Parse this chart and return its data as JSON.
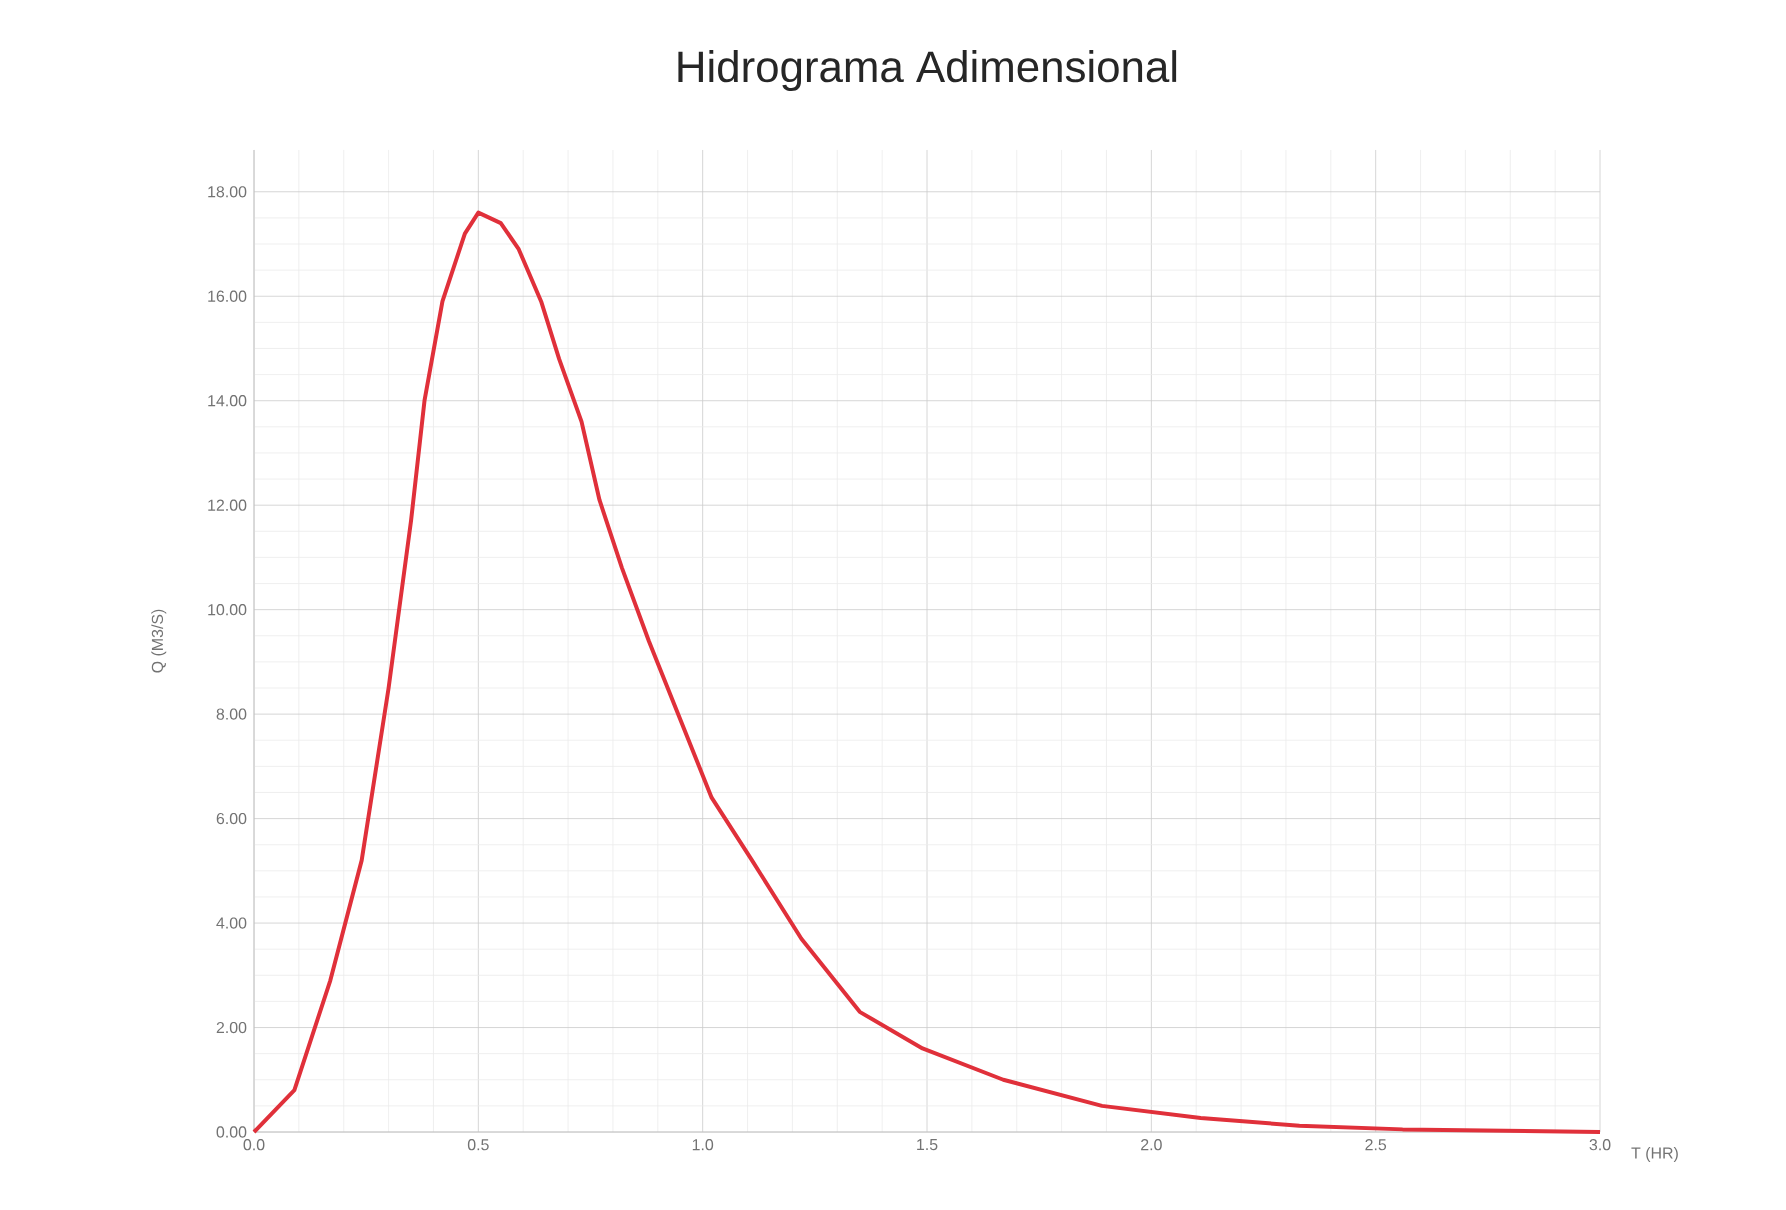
{
  "chart_data": {
    "type": "line",
    "title": "Hidrograma Adimensional",
    "xlabel": "T (HR)",
    "ylabel": "Q (M3/S)",
    "xlim": [
      0,
      3
    ],
    "ylim": [
      0,
      18.8
    ],
    "xticks": [
      {
        "value": 0,
        "label": "0.0"
      },
      {
        "value": 0.5,
        "label": "0.5"
      },
      {
        "value": 1,
        "label": "1.0"
      },
      {
        "value": 1.5,
        "label": "1.5"
      },
      {
        "value": 2,
        "label": "2.0"
      },
      {
        "value": 2.5,
        "label": "2.5"
      },
      {
        "value": 3,
        "label": "3.0"
      }
    ],
    "yticks": [
      {
        "value": 0,
        "label": "0.00"
      },
      {
        "value": 2,
        "label": "2.00"
      },
      {
        "value": 4,
        "label": "4.00"
      },
      {
        "value": 6,
        "label": "6.00"
      },
      {
        "value": 8,
        "label": "8.00"
      },
      {
        "value": 10,
        "label": "10.00"
      },
      {
        "value": 12,
        "label": "12.00"
      },
      {
        "value": 14,
        "label": "14.00"
      },
      {
        "value": 16,
        "label": "16.00"
      },
      {
        "value": 18,
        "label": "18.00"
      }
    ],
    "grid": true,
    "series": [
      {
        "color": "#e0303a",
        "line_style": "solid",
        "x": [
          0,
          0.09,
          0.17,
          0.24,
          0.3,
          0.35,
          0.38,
          0.42,
          0.47,
          0.5,
          0.55,
          0.59,
          0.64,
          0.68,
          0.73,
          0.77,
          0.82,
          0.88,
          0.95,
          1.02,
          1.11,
          1.22,
          1.35,
          1.49,
          1.67,
          1.89,
          2.11,
          2.33,
          2.56,
          3.0
        ],
        "values": [
          0,
          0.8,
          2.9,
          5.2,
          8.5,
          11.7,
          14.0,
          15.9,
          17.2,
          17.6,
          17.4,
          16.9,
          15.9,
          14.8,
          13.6,
          12.1,
          10.8,
          9.4,
          7.9,
          6.4,
          5.2,
          3.7,
          2.3,
          1.6,
          1.0,
          0.5,
          0.27,
          0.12,
          0.05,
          0
        ]
      }
    ]
  }
}
